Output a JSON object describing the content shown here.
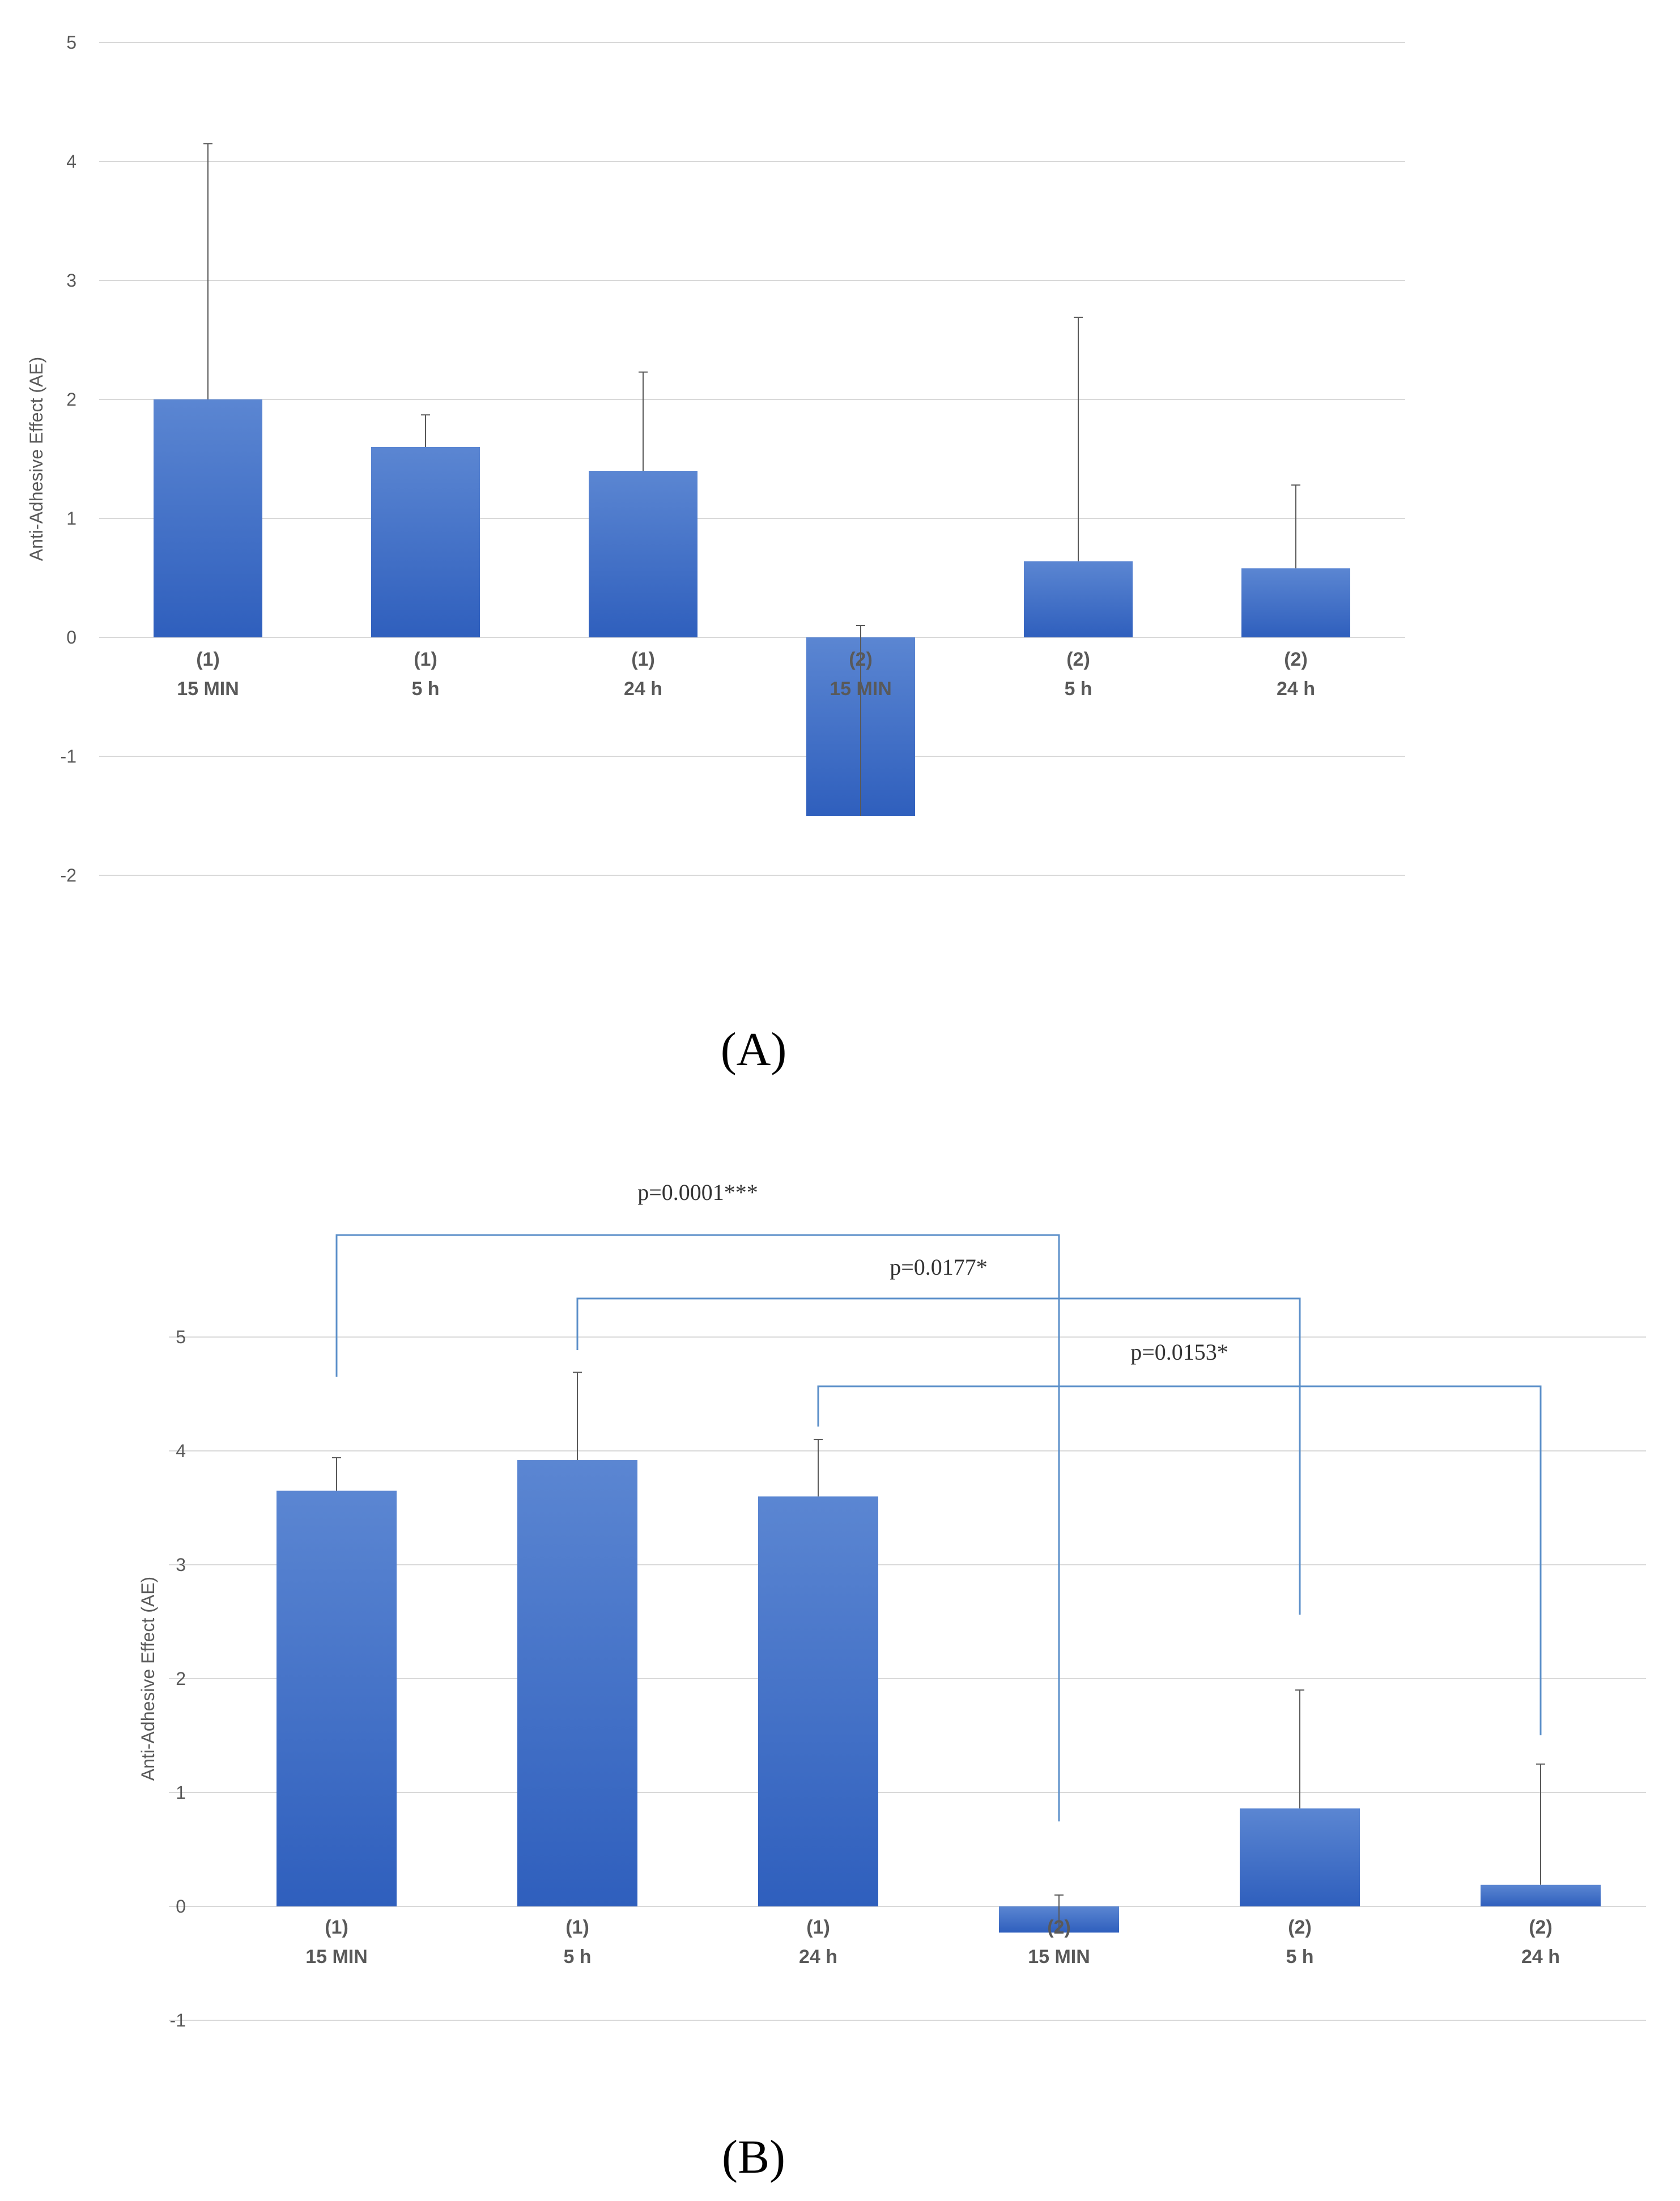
{
  "chart_data": [
    {
      "type": "bar",
      "panel_label": "(A)",
      "ylabel": "Anti-Adhesive Effect (AE)",
      "ylim": [
        -2,
        5
      ],
      "yticks": [
        -2,
        -1,
        0,
        1,
        2,
        3,
        4,
        5
      ],
      "grid": true,
      "categories": [
        {
          "group": "(1)",
          "time": "15 MIN"
        },
        {
          "group": "(1)",
          "time": "5 h"
        },
        {
          "group": "(1)",
          "time": "24 h"
        },
        {
          "group": "(2)",
          "time": "15 MIN"
        },
        {
          "group": "(2)",
          "time": "5 h"
        },
        {
          "group": "(2)",
          "time": "24 h"
        }
      ],
      "values": [
        2.0,
        1.6,
        1.4,
        -1.5,
        0.64,
        0.58
      ],
      "error_bars": [
        2.15,
        0.27,
        0.83,
        1.6,
        2.05,
        0.7
      ],
      "error_bar_direction": "up",
      "bar_color": "#4472c4"
    },
    {
      "type": "bar",
      "panel_label": "(B)",
      "ylabel": "Anti-Adhesive Effect (AE)",
      "ylim": [
        -1,
        5
      ],
      "yticks": [
        -1,
        0,
        1,
        2,
        3,
        4,
        5
      ],
      "grid": true,
      "categories": [
        {
          "group": "(1)",
          "time": "15 MIN"
        },
        {
          "group": "(1)",
          "time": "5 h"
        },
        {
          "group": "(1)",
          "time": "24 h"
        },
        {
          "group": "(2)",
          "time": "15 MIN"
        },
        {
          "group": "(2)",
          "time": "5 h"
        },
        {
          "group": "(2)",
          "time": "24 h"
        }
      ],
      "values": [
        3.65,
        3.92,
        3.6,
        -0.23,
        0.86,
        0.19
      ],
      "error_bars": [
        0.29,
        0.77,
        0.5,
        0.33,
        1.04,
        1.06
      ],
      "error_bar_direction": "up",
      "bar_color": "#4472c4",
      "significance": [
        {
          "from": 0,
          "to": 3,
          "label": "p=0.0001***"
        },
        {
          "from": 1,
          "to": 4,
          "label": "p=0.0177*"
        },
        {
          "from": 2,
          "to": 5,
          "label": "p=0.0153*"
        }
      ]
    }
  ]
}
